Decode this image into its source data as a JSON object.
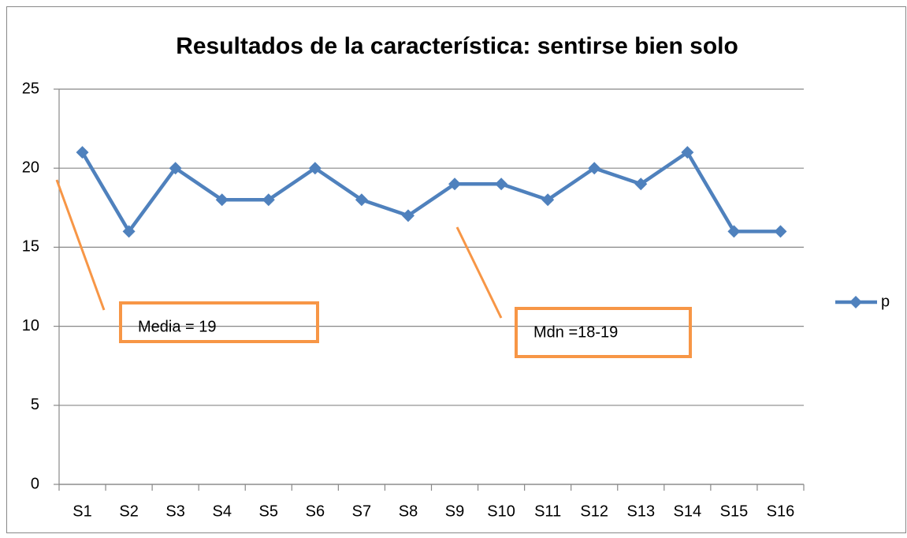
{
  "chart_data": {
    "type": "line",
    "title": "Resultados de la característica: sentirse bien solo",
    "categories": [
      "S1",
      "S2",
      "S3",
      "S4",
      "S5",
      "S6",
      "S7",
      "S8",
      "S9",
      "S10",
      "S11",
      "S12",
      "S13",
      "S14",
      "S15",
      "S16"
    ],
    "series": [
      {
        "name": "p",
        "color": "#4f81bd",
        "values": [
          21,
          16,
          20,
          18,
          18,
          20,
          18,
          17,
          19,
          19,
          18,
          20,
          19,
          21,
          16,
          16
        ]
      }
    ],
    "ylim": [
      0,
      25
    ],
    "yticks": [
      0,
      5,
      10,
      15,
      20,
      25
    ],
    "grid": true,
    "legend": "right",
    "annotations": [
      "Media = 19",
      "Mdn =18-19"
    ]
  }
}
